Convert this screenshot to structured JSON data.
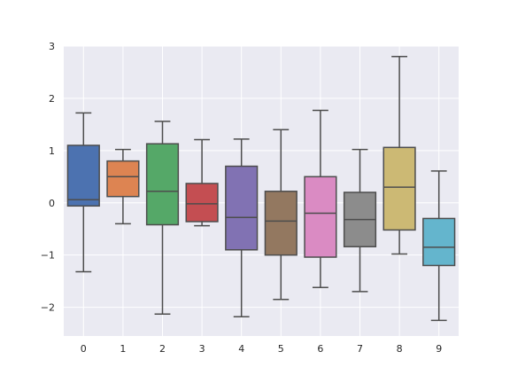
{
  "chart_data": {
    "type": "box",
    "title": "",
    "xlabel": "",
    "ylabel": "",
    "categories": [
      "0",
      "1",
      "2",
      "3",
      "4",
      "5",
      "6",
      "7",
      "8",
      "9"
    ],
    "ylim": [
      -2.55,
      3.0
    ],
    "yticks": [
      -2,
      -1,
      0,
      1,
      2,
      3
    ],
    "ytick_labels": [
      "−2",
      "−1",
      "0",
      "1",
      "2",
      "3"
    ],
    "grid": true,
    "background": "#eaeaf2",
    "grid_color": "#ffffff",
    "line_color": "#4d4d4d",
    "boxes": [
      {
        "category": "0",
        "whisker_low": -1.32,
        "q1": -0.06,
        "median": 0.06,
        "q3": 1.1,
        "whisker_high": 1.72,
        "color": "#4c72b0"
      },
      {
        "category": "1",
        "whisker_low": -0.4,
        "q1": 0.12,
        "median": 0.5,
        "q3": 0.8,
        "whisker_high": 1.02,
        "color": "#dd8452"
      },
      {
        "category": "2",
        "whisker_low": -2.13,
        "q1": -0.42,
        "median": 0.22,
        "q3": 1.13,
        "whisker_high": 1.56,
        "color": "#55a868"
      },
      {
        "category": "3",
        "whisker_low": -0.44,
        "q1": -0.36,
        "median": -0.02,
        "q3": 0.37,
        "whisker_high": 1.21,
        "color": "#c44e52"
      },
      {
        "category": "4",
        "whisker_low": -2.18,
        "q1": -0.9,
        "median": -0.28,
        "q3": 0.7,
        "whisker_high": 1.22,
        "color": "#8172b3"
      },
      {
        "category": "5",
        "whisker_low": -1.85,
        "q1": -1.0,
        "median": -0.35,
        "q3": 0.22,
        "whisker_high": 1.4,
        "color": "#937860"
      },
      {
        "category": "6",
        "whisker_low": -1.62,
        "q1": -1.04,
        "median": -0.2,
        "q3": 0.5,
        "whisker_high": 1.77,
        "color": "#da8bc3"
      },
      {
        "category": "7",
        "whisker_low": -1.7,
        "q1": -0.84,
        "median": -0.32,
        "q3": 0.2,
        "whisker_high": 1.02,
        "color": "#8c8c8c"
      },
      {
        "category": "8",
        "whisker_low": -0.98,
        "q1": -0.52,
        "median": 0.3,
        "q3": 1.06,
        "whisker_high": 2.8,
        "color": "#ccb974"
      },
      {
        "category": "9",
        "whisker_low": -2.25,
        "q1": -1.2,
        "median": -0.85,
        "q3": -0.3,
        "whisker_high": 0.61,
        "color": "#64b5cd"
      }
    ]
  }
}
